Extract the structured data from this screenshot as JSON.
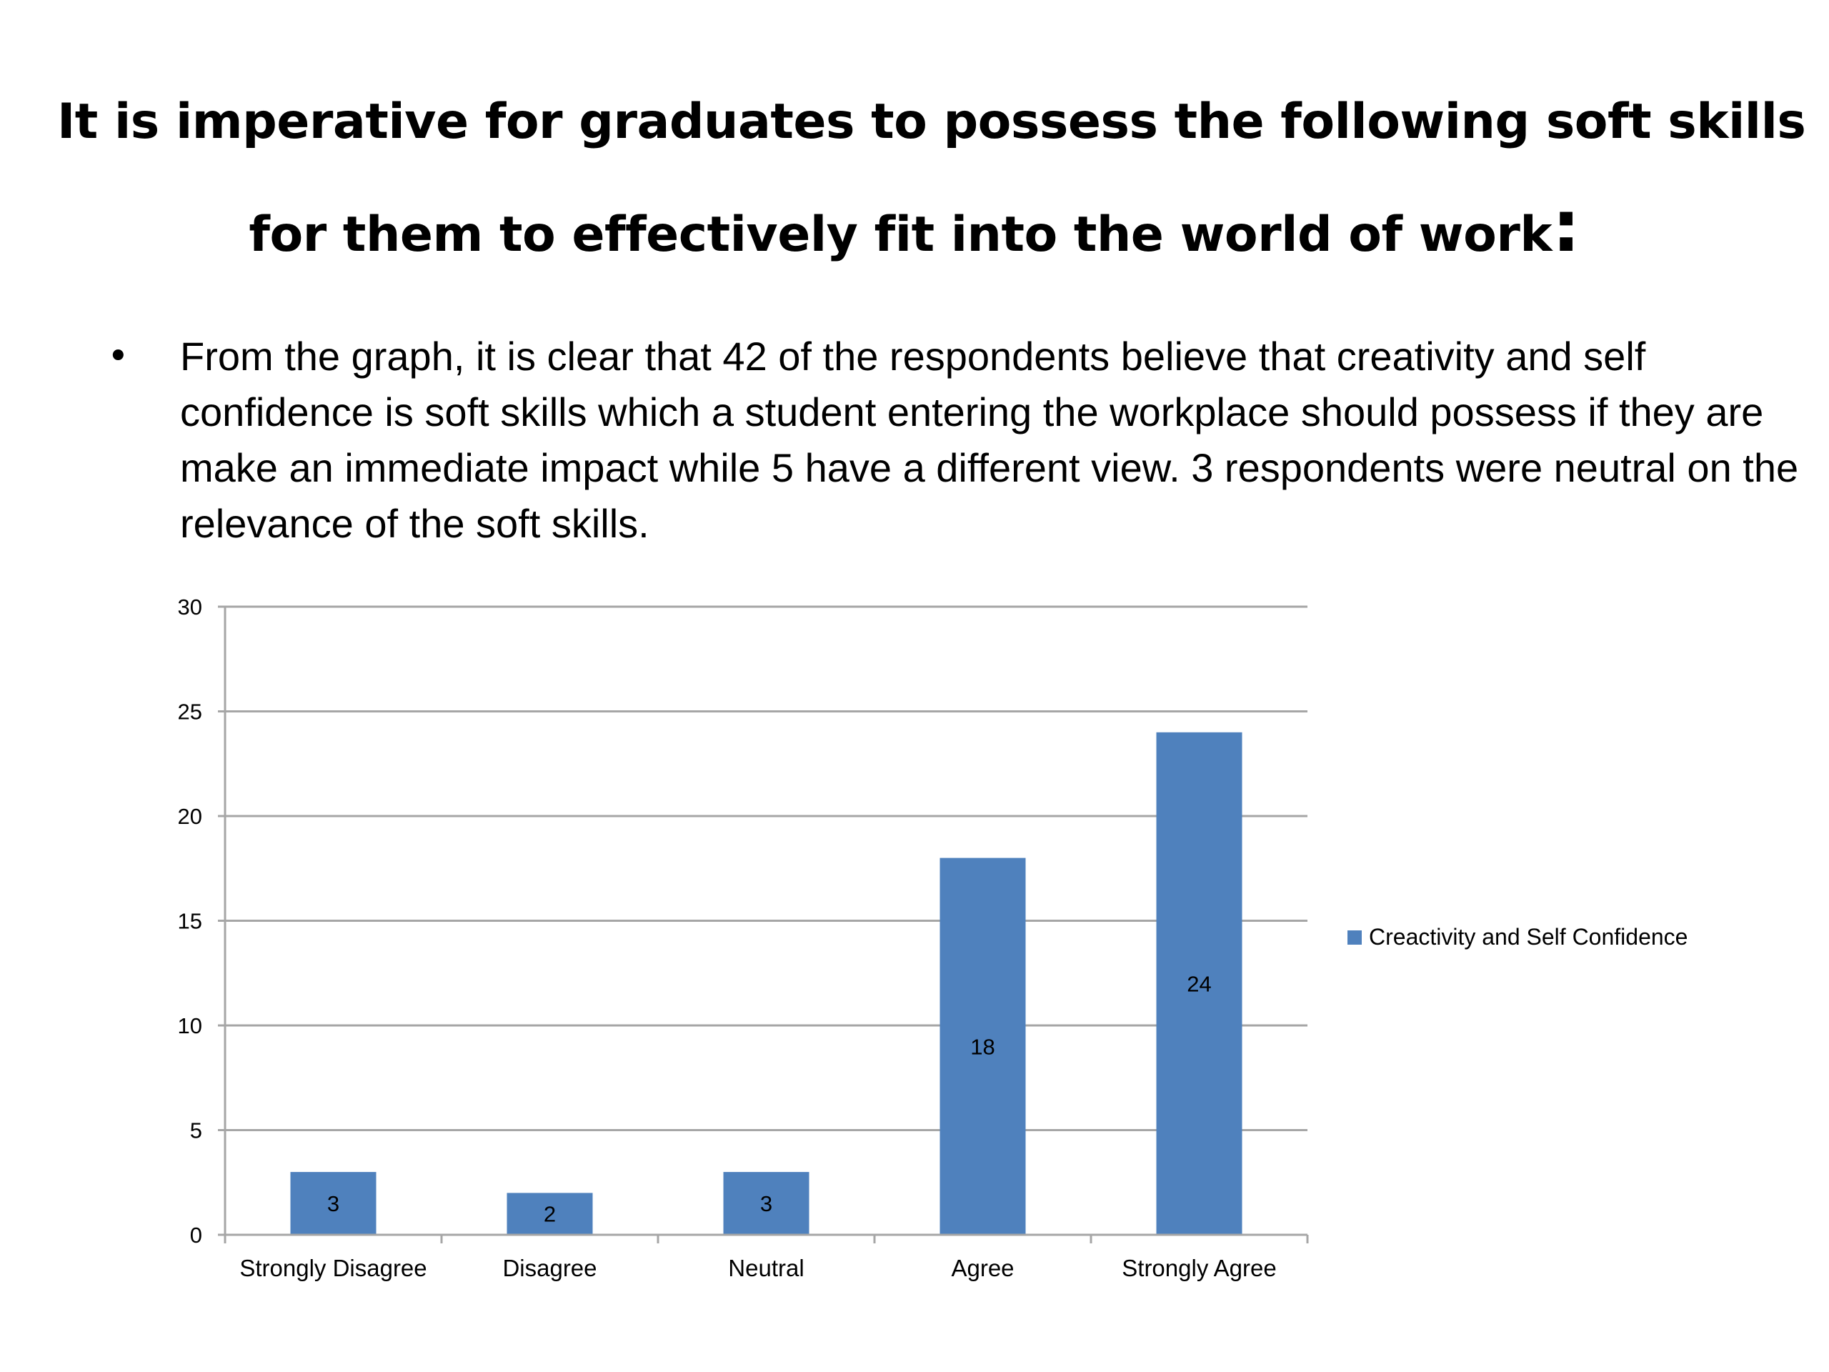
{
  "slide": {
    "title_line1": "It is imperative for graduates to possess the following soft skills",
    "title_line2": "for them to effectively fit into the world of work",
    "title_colon": ":",
    "bullet_symbol": "•",
    "bullet_text": "From the graph, it is clear that 42 of the respondents believe that creativity and self confidence is soft skills which a student entering the workplace should possess if they are make an immediate impact while 5 have a different view. 3 respondents were neutral on the relevance of the soft skills."
  },
  "chart_data": {
    "type": "bar",
    "categories": [
      "Strongly Disagree",
      "Disagree",
      "Neutral",
      "Agree",
      "Strongly Agree"
    ],
    "series": [
      {
        "name": "Creactivity and Self Confidence",
        "values": [
          3,
          2,
          3,
          18,
          24
        ],
        "color": "#4f81bd"
      }
    ],
    "data_labels": [
      "3",
      "2",
      "3",
      "18",
      "24"
    ],
    "ylim": [
      0,
      30
    ],
    "yticks": [
      0,
      5,
      10,
      15,
      20,
      25,
      30
    ],
    "grid": true,
    "legend_position": "right",
    "gridline_color": "#a6a6a6"
  }
}
